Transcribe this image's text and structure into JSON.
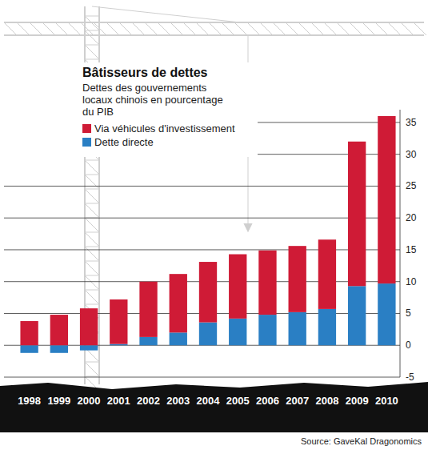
{
  "chart_data": {
    "type": "bar",
    "title": "Bâtisseurs de dettes",
    "subtitle": "Dettes des gouvernements locaux chinois en pourcentage du PIB",
    "source": "Source: GaveKal Dragonomics",
    "categories": [
      "1998",
      "1999",
      "2000",
      "2001",
      "2002",
      "2003",
      "2004",
      "2005",
      "2006",
      "2007",
      "2008",
      "2009",
      "2010"
    ],
    "series": [
      {
        "name": "Via véhicules d'investissement",
        "color": "#cf1b36",
        "values": [
          3.8,
          4.8,
          5.8,
          7.0,
          8.7,
          9.2,
          9.5,
          10.1,
          10.1,
          10.4,
          10.9,
          22.7,
          26.3
        ]
      },
      {
        "name": "Dette directe",
        "color": "#2a7fc4",
        "values": [
          -1.2,
          -1.2,
          -0.8,
          0.2,
          1.3,
          2.0,
          3.6,
          4.2,
          4.8,
          5.2,
          5.7,
          9.3,
          9.7
        ]
      }
    ],
    "stacked": true,
    "ylim": [
      -5,
      37
    ],
    "yticks": [
      -5,
      0,
      5,
      10,
      15,
      20,
      25,
      30,
      35
    ],
    "grid": true,
    "legend": "top-left"
  }
}
